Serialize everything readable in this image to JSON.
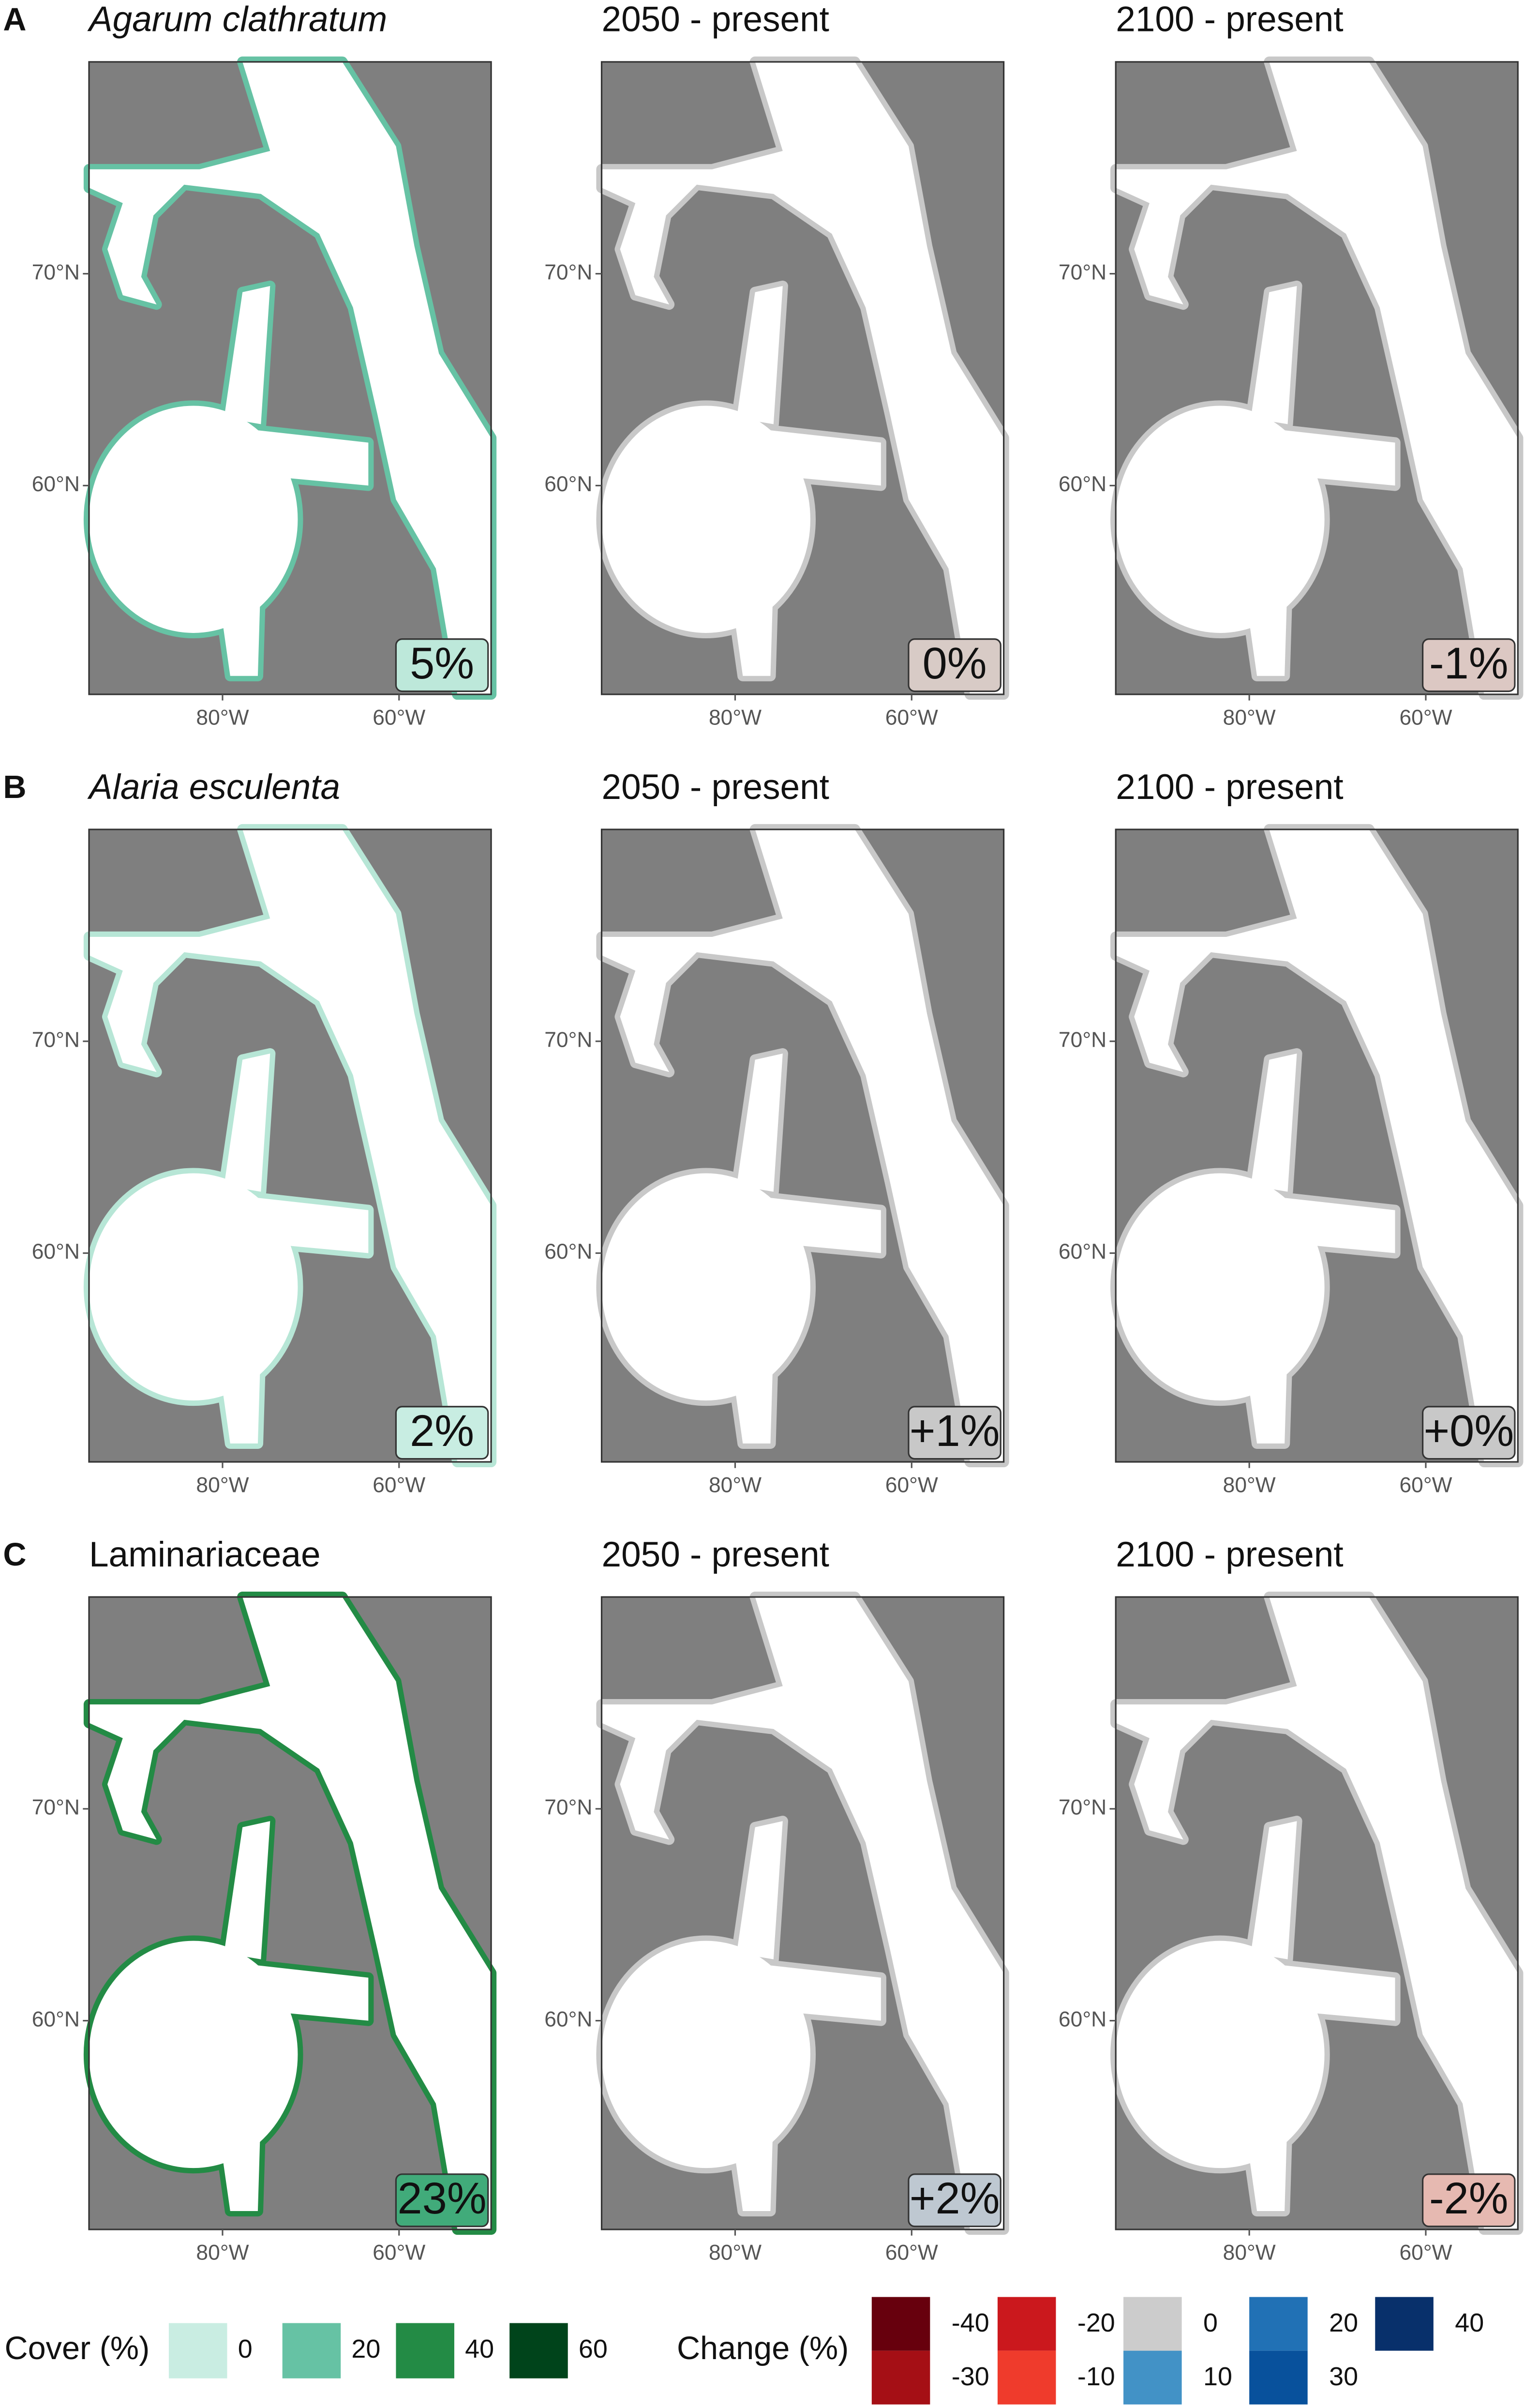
{
  "panels": [
    {
      "letter": "A",
      "italic": true,
      "cover_color": "#66c2a4",
      "maps": [
        {
          "title": "Agarum clathratum",
          "stat": "5%",
          "stat_color": "#bde8da"
        },
        {
          "title": "2050 - present",
          "stat": "0%",
          "stat_color": "#d8cbc6"
        },
        {
          "title": "2100 - present",
          "stat": "-1%",
          "stat_color": "#dcc8c3"
        }
      ]
    },
    {
      "letter": "B",
      "italic": true,
      "cover_color": "#b7e6d6",
      "maps": [
        {
          "title": "Alaria esculenta",
          "stat": "2%",
          "stat_color": "#c8ede2"
        },
        {
          "title": "2050 - present",
          "stat": "+1%",
          "stat_color": "#c8c8c8"
        },
        {
          "title": "2100 - present",
          "stat": "+0%",
          "stat_color": "#c8c8c8"
        }
      ]
    },
    {
      "letter": "C",
      "italic": false,
      "cover_color": "#238b45",
      "maps": [
        {
          "title": "Laminariaceae",
          "stat": "23%",
          "stat_color": "#41ab7a"
        },
        {
          "title": "2050 - present",
          "stat": "+2%",
          "stat_color": "#bec8d1"
        },
        {
          "title": "2100 - present",
          "stat": "-2%",
          "stat_color": "#e6b9b1"
        }
      ]
    }
  ],
  "y_ticks": [
    "70°N",
    "60°N"
  ],
  "x_ticks": [
    "80°W",
    "60°W"
  ],
  "legend_cover": {
    "title": "Cover (%)",
    "items": [
      {
        "label": "0",
        "color": "#c9ede2"
      },
      {
        "label": "20",
        "color": "#66c2a4"
      },
      {
        "label": "40",
        "color": "#238b45"
      },
      {
        "label": "60",
        "color": "#00441b"
      }
    ]
  },
  "legend_change": {
    "title": "Change (%)",
    "items": [
      {
        "label": "-40",
        "color": "#67000d"
      },
      {
        "label": "-30",
        "color": "#a50f15"
      },
      {
        "label": "-20",
        "color": "#cb181d"
      },
      {
        "label": "-10",
        "color": "#ef3b2c"
      },
      {
        "label": "0",
        "color": "#cccccc"
      },
      {
        "label": "10",
        "color": "#4292c6"
      },
      {
        "label": "20",
        "color": "#2171b5"
      },
      {
        "label": "30",
        "color": "#08519c"
      },
      {
        "label": "40",
        "color": "#08306b"
      }
    ]
  }
}
